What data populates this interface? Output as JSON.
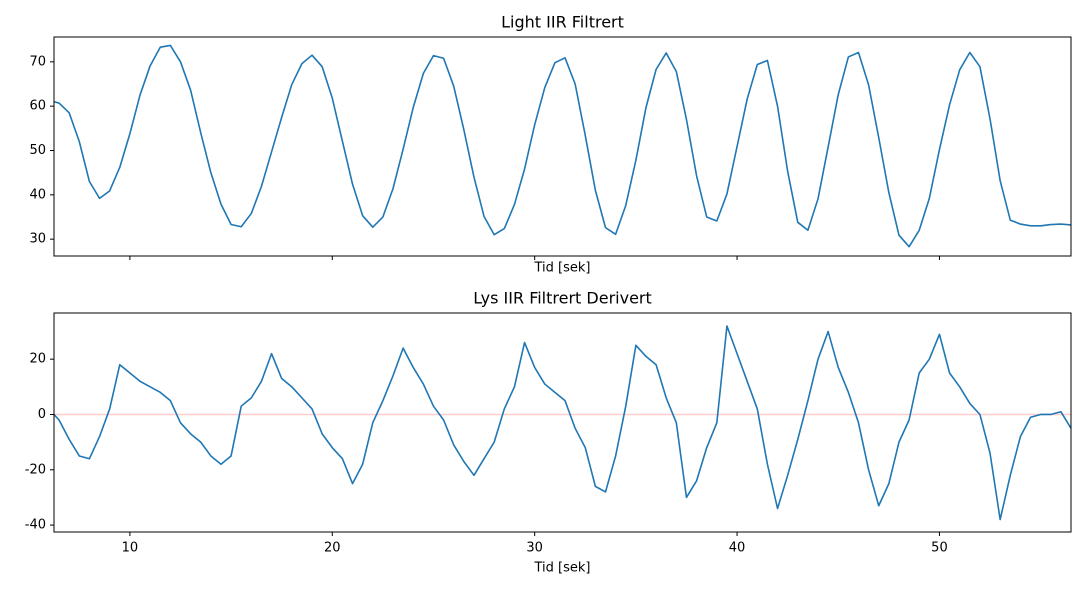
{
  "chart_data": [
    {
      "type": "line",
      "title": "Light IIR Filtrert",
      "xlabel": "Tid [sek]",
      "x": [
        6.25,
        6.5,
        7,
        7.5,
        8,
        8.5,
        9,
        9.5,
        10,
        10.5,
        11,
        11.5,
        12,
        12.5,
        13,
        13.5,
        14,
        14.5,
        15,
        15.5,
        16,
        16.5,
        17,
        17.5,
        18,
        18.5,
        19,
        19.5,
        20,
        20.5,
        21,
        21.5,
        22,
        22.5,
        23,
        23.5,
        24,
        24.5,
        25,
        25.5,
        26,
        26.5,
        27,
        27.5,
        28,
        28.5,
        29,
        29.5,
        30,
        30.5,
        31,
        31.5,
        32,
        32.5,
        33,
        33.5,
        34,
        34.5,
        35,
        35.5,
        36,
        36.5,
        37,
        37.5,
        38,
        38.5,
        39,
        39.5,
        40,
        40.5,
        41,
        41.5,
        42,
        42.5,
        43,
        43.5,
        44,
        44.5,
        45,
        45.5,
        46,
        46.5,
        47,
        47.5,
        48,
        48.5,
        49,
        49.5,
        50,
        50.5,
        51,
        51.5,
        52,
        52.5,
        53,
        53.5,
        54,
        54.5,
        55,
        55.5,
        56,
        56.5
      ],
      "values": [
        61,
        60.7,
        58.5,
        52,
        43,
        39.2,
        40.9,
        46.2,
        53.8,
        62.5,
        69.1,
        73.3,
        73.7,
        70,
        63.6,
        54,
        45,
        37.9,
        33.3,
        32.8,
        35.8,
        41.9,
        49.7,
        57.5,
        64.9,
        69.6,
        71.5,
        68.9,
        61.8,
        52.1,
        42.4,
        35.3,
        32.7,
        35,
        41.4,
        50.3,
        59.7,
        67.4,
        71.4,
        70.8,
        64.5,
        54.7,
        44,
        35.1,
        31,
        32.4,
        37.8,
        45.8,
        55.8,
        64.2,
        69.8,
        70.9,
        65,
        53.4,
        41,
        32.6,
        31.1,
        37.6,
        47.8,
        59.7,
        68.3,
        72,
        67.8,
        57,
        44.3,
        35,
        34.1,
        40.2,
        50.9,
        61.6,
        69.4,
        70.3,
        60,
        45.3,
        33.8,
        32,
        39.1,
        50.8,
        62.6,
        71.1,
        72.1,
        64.8,
        52.9,
        40.5,
        30.9,
        28.3,
        32,
        39.2,
        50.2,
        60.3,
        68.2,
        72.1,
        68.9,
        57.1,
        43.2,
        34.3,
        33.4,
        33,
        33,
        33.3,
        33.4,
        33.2
      ],
      "color": "#1f77b4",
      "xlim": [
        6.25,
        56.5
      ],
      "xticks": [
        10,
        20,
        30,
        40,
        50
      ],
      "show_xticklabels": false,
      "ylim": [
        26.2,
        75.6
      ],
      "yticks": [
        30,
        40,
        50,
        60,
        70
      ]
    },
    {
      "type": "line",
      "title": "Lys IIR Filtrert Derivert",
      "xlabel": "Tid [sek]",
      "x": [
        6.25,
        6.5,
        7,
        7.5,
        8,
        8.5,
        9,
        9.5,
        10,
        10.5,
        11,
        11.5,
        12,
        12.5,
        13,
        13.5,
        14,
        14.5,
        15,
        15.5,
        16,
        16.5,
        17,
        17.5,
        18,
        18.5,
        19,
        19.5,
        20,
        20.5,
        21,
        21.5,
        22,
        22.5,
        23,
        23.5,
        24,
        24.5,
        25,
        25.5,
        26,
        26.5,
        27,
        27.5,
        28,
        28.5,
        29,
        29.5,
        30,
        30.5,
        31,
        31.5,
        32,
        32.5,
        33,
        33.5,
        34,
        34.5,
        35,
        35.5,
        36,
        36.5,
        37,
        37.5,
        38,
        38.5,
        39,
        39.5,
        40,
        40.5,
        41,
        41.5,
        42,
        42.5,
        43,
        43.5,
        44,
        44.5,
        45,
        45.5,
        46,
        46.5,
        47,
        47.5,
        48,
        48.5,
        49,
        49.5,
        50,
        50.5,
        51,
        51.5,
        52,
        52.5,
        53,
        53.5,
        54,
        54.5,
        55,
        55.5,
        56,
        56.5
      ],
      "values": [
        0,
        -2,
        -9,
        -15,
        -16,
        -8,
        2,
        18,
        15,
        12,
        10,
        8,
        5,
        -3,
        -7,
        -10,
        -15,
        -18,
        -15,
        3,
        6,
        12,
        22,
        13,
        10,
        6,
        2,
        -7,
        -12,
        -16,
        -25,
        -18,
        -3,
        5,
        14,
        24,
        17,
        11,
        3,
        -2,
        -11,
        -17,
        -22,
        -16,
        -10,
        2,
        10,
        26,
        17,
        11,
        8,
        5,
        -5,
        -12,
        -26,
        -28,
        -15,
        3,
        25,
        21,
        18,
        6,
        -3,
        -30,
        -24,
        -12,
        -3,
        32,
        22,
        12,
        2,
        -18,
        -34,
        -22,
        -9,
        5,
        20,
        30,
        17,
        8,
        -3,
        -20,
        -33,
        -25,
        -10,
        -2,
        15,
        20,
        29,
        15,
        10,
        4,
        0,
        -14,
        -38,
        -22,
        -8,
        -1,
        0,
        0,
        1,
        -5
      ],
      "color": "#1f77b4",
      "xlim": [
        6.25,
        56.5
      ],
      "xticks": [
        10,
        20,
        30,
        40,
        50
      ],
      "show_xticklabels": true,
      "ylim": [
        -42.5,
        36.7
      ],
      "yticks": [
        -40,
        -20,
        0,
        20
      ],
      "hline": {
        "value": 0,
        "color": "#ffcccc"
      }
    }
  ]
}
